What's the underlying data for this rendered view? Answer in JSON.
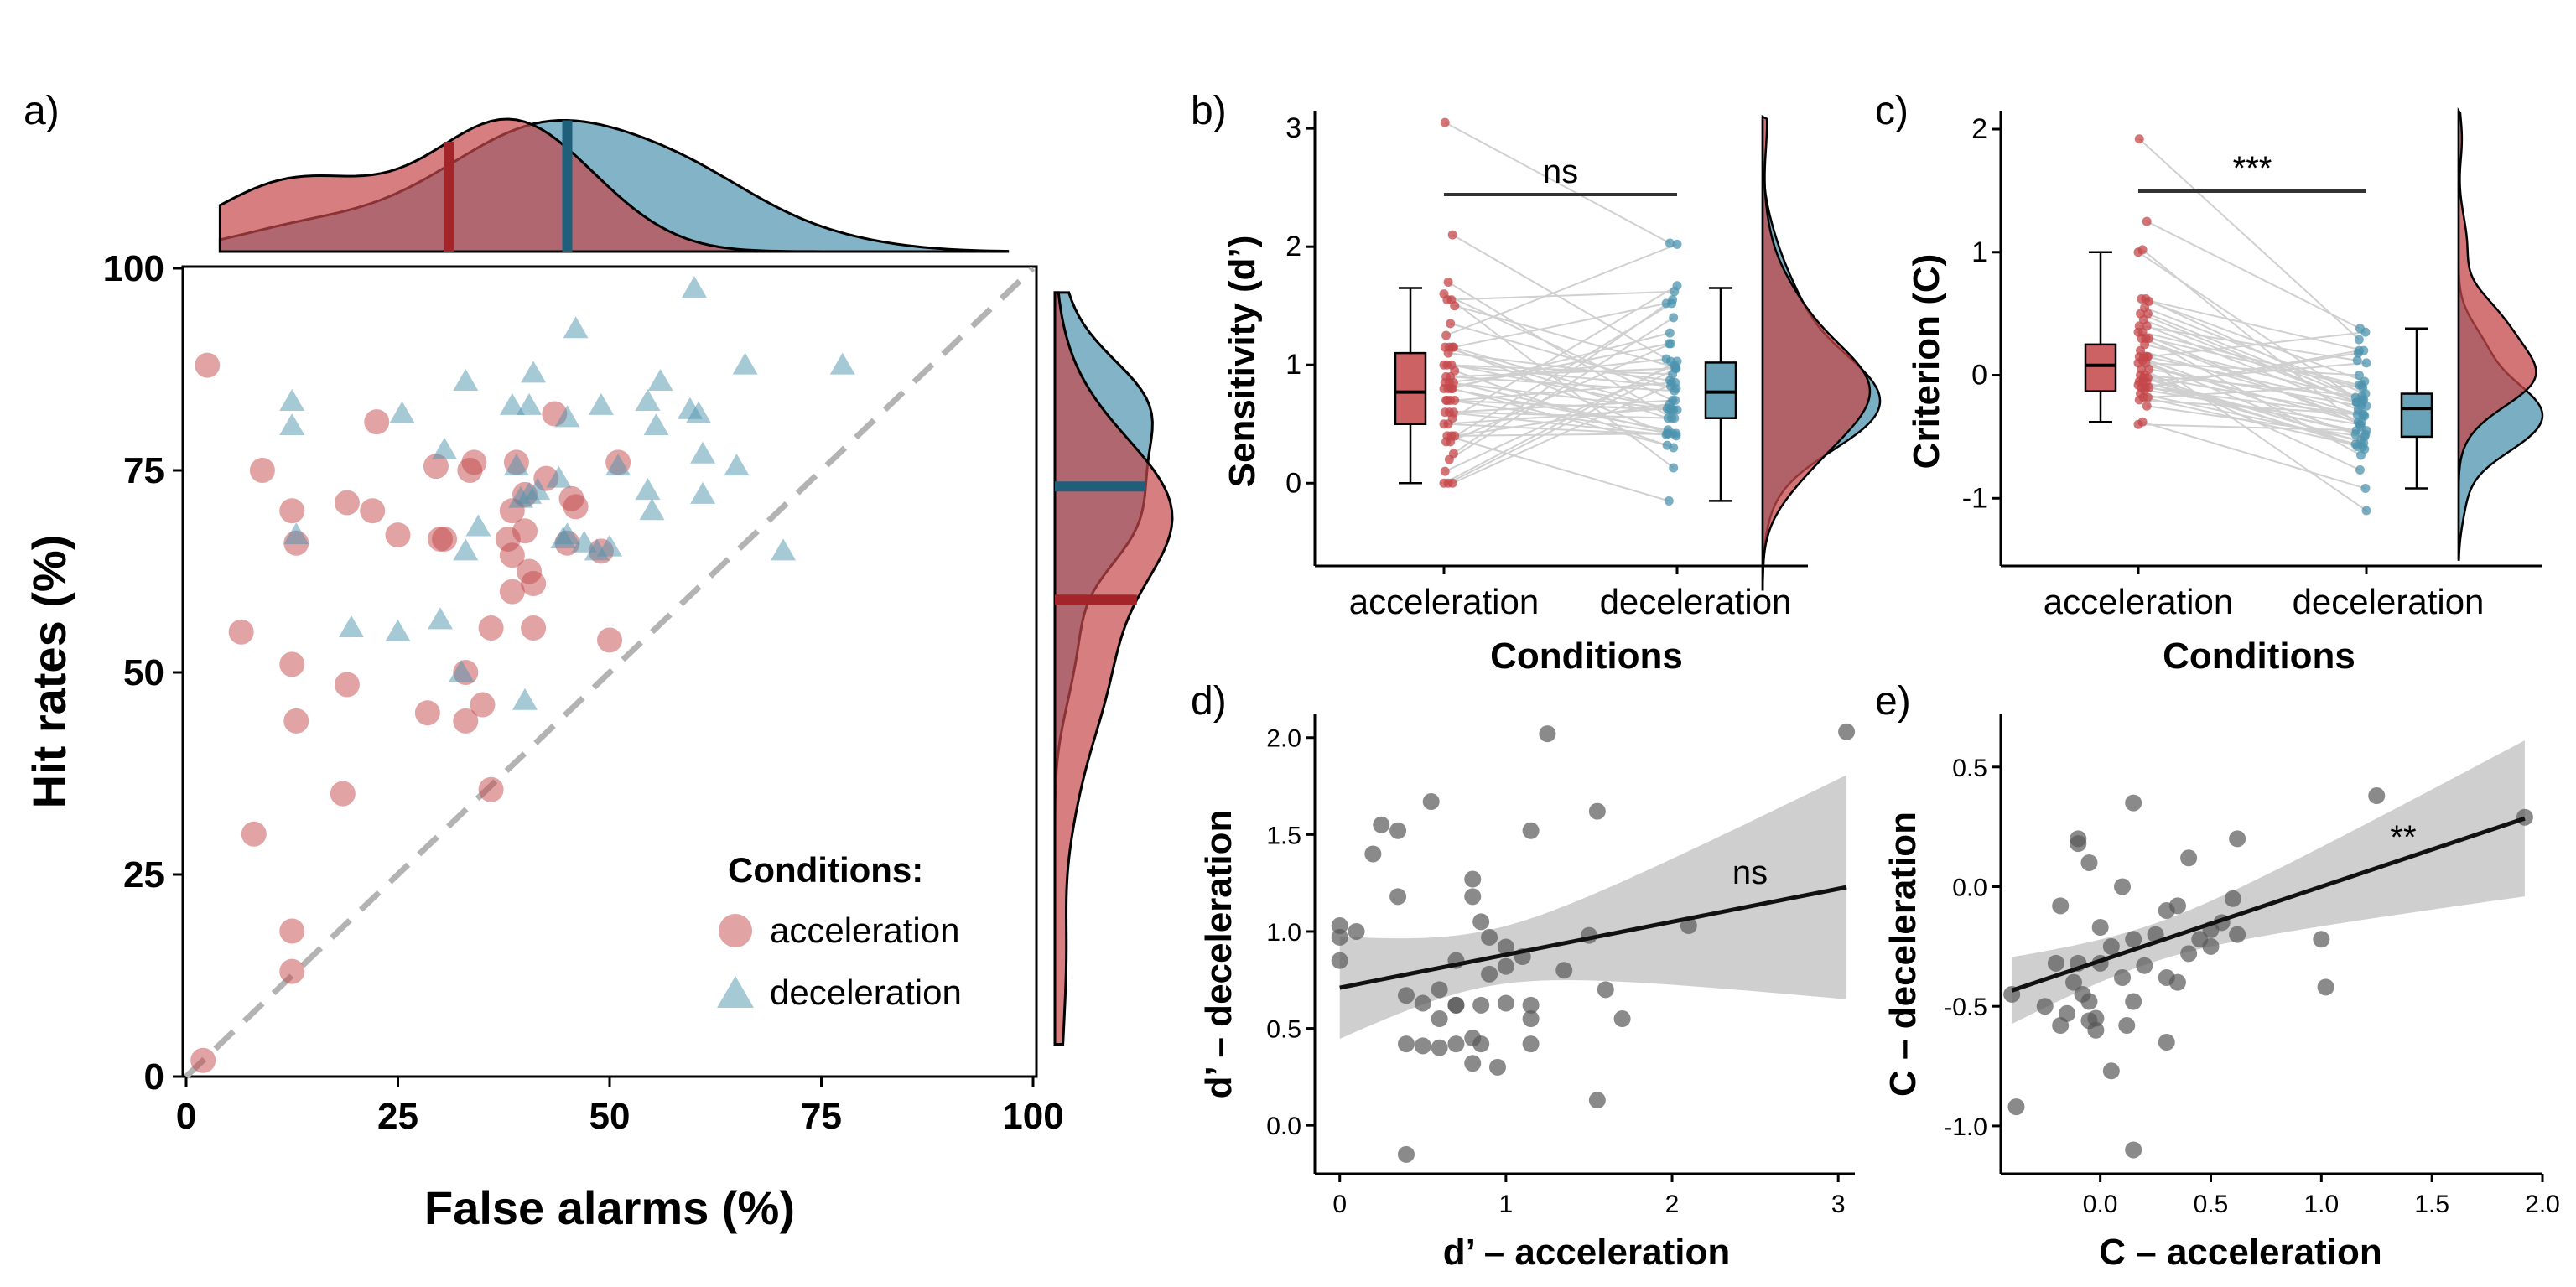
{
  "colors": {
    "acceleration": "#c4474a",
    "deceleration": "#4d93ae",
    "overlap": "#6e6e84",
    "grey": "#595959",
    "ci": "#cccccc"
  },
  "chart_data": [
    {
      "panel": "a)",
      "type": "scatter",
      "xlabel": "False alarms (%)",
      "ylabel": "Hit rates (%)",
      "xlim": [
        0,
        100
      ],
      "ylim": [
        0,
        100
      ],
      "xticks": [
        "0",
        "25",
        "50",
        "75",
        "100"
      ],
      "yticks": [
        "0",
        "25",
        "50",
        "75",
        "100"
      ],
      "legend_title": "Conditions:",
      "legend_position": "bottom-right",
      "diagonal": "dashed identity line",
      "acc_mean": {
        "x": 31,
        "y": 59
      },
      "dec_mean": {
        "x": 45,
        "y": 73
      },
      "series": [
        {
          "name": "acceleration",
          "marker": "circle",
          "points": [
            [
              2,
              2
            ],
            [
              2.5,
              88
            ],
            [
              6.5,
              55
            ],
            [
              8,
              30
            ],
            [
              9,
              75
            ],
            [
              12.5,
              70
            ],
            [
              12.5,
              51
            ],
            [
              13,
              66
            ],
            [
              13,
              44
            ],
            [
              12.5,
              18
            ],
            [
              12.5,
              13
            ],
            [
              18.5,
              35
            ],
            [
              19,
              71
            ],
            [
              19,
              48.5
            ],
            [
              22,
              70
            ],
            [
              22.5,
              81
            ],
            [
              25,
              67
            ],
            [
              28.5,
              45
            ],
            [
              29.5,
              75.5
            ],
            [
              30,
              66.5
            ],
            [
              30.5,
              66.5
            ],
            [
              33,
              50
            ],
            [
              33,
              44
            ],
            [
              33.5,
              75
            ],
            [
              34,
              76
            ],
            [
              35,
              46
            ],
            [
              36,
              55.5
            ],
            [
              36,
              35.5
            ],
            [
              38,
              66.5
            ],
            [
              38.5,
              64.5
            ],
            [
              38.5,
              70
            ],
            [
              38.5,
              60
            ],
            [
              39,
              76
            ],
            [
              40,
              72
            ],
            [
              40,
              67.5
            ],
            [
              40.5,
              62.5
            ],
            [
              41,
              55.5
            ],
            [
              41,
              61
            ],
            [
              42.5,
              74
            ],
            [
              43.5,
              82
            ],
            [
              45,
              66
            ],
            [
              45.5,
              71.5
            ],
            [
              46,
              70.5
            ],
            [
              49,
              65
            ],
            [
              50,
              54
            ],
            [
              51,
              76
            ]
          ]
        },
        {
          "name": "deceleration",
          "marker": "triangle",
          "points": [
            [
              12.5,
              83.5
            ],
            [
              12.5,
              80.5
            ],
            [
              13,
              67
            ],
            [
              19.5,
              55.5
            ],
            [
              25,
              55
            ],
            [
              25.5,
              82
            ],
            [
              30,
              56.5
            ],
            [
              30.5,
              77.5
            ],
            [
              32.5,
              50
            ],
            [
              33,
              65
            ],
            [
              33,
              86
            ],
            [
              34.5,
              68
            ],
            [
              38.5,
              83
            ],
            [
              39,
              75.5
            ],
            [
              39.5,
              71.5
            ],
            [
              40,
              46.5
            ],
            [
              40.5,
              72
            ],
            [
              40.5,
              83
            ],
            [
              41,
              87
            ],
            [
              41.5,
              72.5
            ],
            [
              44,
              74
            ],
            [
              44.5,
              66.5
            ],
            [
              45,
              67
            ],
            [
              45,
              81.5
            ],
            [
              46,
              92.5
            ],
            [
              47,
              66
            ],
            [
              48.5,
              65
            ],
            [
              49,
              83
            ],
            [
              50,
              65.5
            ],
            [
              51,
              75.5
            ],
            [
              54.5,
              83.5
            ],
            [
              54.5,
              72.5
            ],
            [
              55,
              70
            ],
            [
              55.5,
              80.5
            ],
            [
              56,
              86
            ],
            [
              59.5,
              82.5
            ],
            [
              60,
              97.5
            ],
            [
              60.5,
              82
            ],
            [
              61,
              77
            ],
            [
              61,
              72
            ],
            [
              65,
              75.5
            ],
            [
              66,
              88
            ],
            [
              70.5,
              65
            ],
            [
              77.5,
              88
            ]
          ]
        }
      ]
    },
    {
      "panel": "b)",
      "type": "raincloud",
      "xlabel": "Conditions",
      "ylabel": "Sensitivity (d’)",
      "categories": [
        "acceleration",
        "deceleration"
      ],
      "ylim": [
        -0.7,
        3.15
      ],
      "yticks": [
        "0",
        "1",
        "2",
        "3"
      ],
      "significance": "ns",
      "box": {
        "acceleration": {
          "min": 0.0,
          "q1": 0.5,
          "median": 0.77,
          "q3": 1.1,
          "max": 1.65
        },
        "deceleration": {
          "min": -0.15,
          "q1": 0.55,
          "median": 0.77,
          "q3": 1.02,
          "max": 1.65
        }
      }
    },
    {
      "panel": "c)",
      "type": "raincloud",
      "xlabel": "Conditions",
      "ylabel": "Criterion (C)",
      "categories": [
        "acceleration",
        "deceleration"
      ],
      "ylim": [
        -1.55,
        2.15
      ],
      "yticks": [
        "-1",
        "0",
        "1",
        "2"
      ],
      "significance": "***",
      "box": {
        "acceleration": {
          "min": -0.38,
          "q1": -0.13,
          "median": 0.08,
          "q3": 0.25,
          "max": 1.0
        },
        "deceleration": {
          "min": -0.92,
          "q1": -0.5,
          "median": -0.27,
          "q3": -0.15,
          "max": 0.38
        }
      }
    },
    {
      "panel": "d)",
      "type": "scatter",
      "xlabel": "d’ –  acceleration",
      "ylabel": "d’ – deceleration",
      "xlim": [
        -0.15,
        3.1
      ],
      "ylim": [
        -0.25,
        2.12
      ],
      "xticks": [
        "0",
        "1",
        "2",
        "3"
      ],
      "yticks": [
        "0.0",
        "0.5",
        "1.0",
        "1.5",
        "2.0"
      ],
      "significance": "ns",
      "regression": {
        "intercept": 0.71,
        "slope": 0.17
      },
      "points": [
        [
          0,
          1.03
        ],
        [
          0,
          0.97
        ],
        [
          0,
          0.85
        ],
        [
          0.1,
          1.0
        ],
        [
          0.2,
          1.4
        ],
        [
          0.25,
          1.55
        ],
        [
          0.35,
          1.52
        ],
        [
          0.35,
          1.18
        ],
        [
          0.4,
          0.67
        ],
        [
          0.4,
          -0.15
        ],
        [
          0.4,
          0.42
        ],
        [
          0.5,
          0.63
        ],
        [
          0.5,
          0.41
        ],
        [
          0.55,
          1.67
        ],
        [
          0.6,
          0.4
        ],
        [
          0.6,
          0.7
        ],
        [
          0.6,
          0.55
        ],
        [
          0.7,
          0.62
        ],
        [
          0.7,
          0.42
        ],
        [
          0.7,
          0.85
        ],
        [
          0.7,
          0.62
        ],
        [
          0.8,
          1.27
        ],
        [
          0.8,
          1.18
        ],
        [
          0.8,
          0.45
        ],
        [
          0.8,
          0.32
        ],
        [
          0.85,
          1.05
        ],
        [
          0.85,
          0.62
        ],
        [
          0.85,
          0.42
        ],
        [
          0.9,
          0.97
        ],
        [
          0.9,
          0.78
        ],
        [
          0.95,
          0.3
        ],
        [
          1.0,
          0.92
        ],
        [
          1.0,
          0.63
        ],
        [
          1.0,
          0.82
        ],
        [
          1.1,
          0.87
        ],
        [
          1.15,
          0.62
        ],
        [
          1.15,
          0.55
        ],
        [
          1.15,
          0.42
        ],
        [
          1.15,
          1.52
        ],
        [
          1.25,
          2.02
        ],
        [
          1.35,
          0.8
        ],
        [
          1.5,
          0.98
        ],
        [
          1.55,
          1.62
        ],
        [
          1.55,
          0.13
        ],
        [
          1.6,
          0.7
        ],
        [
          1.7,
          0.55
        ],
        [
          2.1,
          1.03
        ],
        [
          3.05,
          2.03
        ]
      ]
    },
    {
      "panel": "e)",
      "type": "scatter",
      "xlabel": "C –  acceleration",
      "ylabel": "C – deceleration",
      "xlim": [
        -0.45,
        2.0
      ],
      "ylim": [
        -1.2,
        0.72
      ],
      "xticks": [
        "0.0",
        "0.5",
        "1.0",
        "1.5",
        "2.0"
      ],
      "yticks": [
        "-1.0",
        "-0.5",
        "0.0",
        "0.5"
      ],
      "significance": "**",
      "regression": {
        "intercept": -0.31,
        "slope": 0.31
      },
      "points": [
        [
          -0.4,
          -0.45
        ],
        [
          -0.38,
          -0.92
        ],
        [
          -0.25,
          -0.5
        ],
        [
          -0.2,
          -0.32
        ],
        [
          -0.18,
          -0.58
        ],
        [
          -0.18,
          -0.08
        ],
        [
          -0.15,
          -0.53
        ],
        [
          -0.12,
          -0.4
        ],
        [
          -0.1,
          0.2
        ],
        [
          -0.1,
          0.18
        ],
        [
          -0.1,
          -0.32
        ],
        [
          -0.08,
          -0.45
        ],
        [
          -0.05,
          -0.56
        ],
        [
          -0.05,
          0.1
        ],
        [
          -0.05,
          -0.48
        ],
        [
          -0.02,
          -0.6
        ],
        [
          -0.02,
          -0.55
        ],
        [
          0.0,
          -0.32
        ],
        [
          0.0,
          -0.17
        ],
        [
          0.05,
          -0.25
        ],
        [
          0.05,
          -0.77
        ],
        [
          0.1,
          0.0
        ],
        [
          0.1,
          -0.38
        ],
        [
          0.12,
          -0.58
        ],
        [
          0.15,
          -0.22
        ],
        [
          0.15,
          -0.48
        ],
        [
          0.15,
          -1.1
        ],
        [
          0.15,
          0.35
        ],
        [
          0.2,
          -0.33
        ],
        [
          0.25,
          -0.2
        ],
        [
          0.3,
          -0.1
        ],
        [
          0.3,
          -0.38
        ],
        [
          0.3,
          -0.65
        ],
        [
          0.35,
          -0.4
        ],
        [
          0.35,
          -0.08
        ],
        [
          0.4,
          -0.28
        ],
        [
          0.4,
          0.12
        ],
        [
          0.45,
          -0.22
        ],
        [
          0.5,
          -0.18
        ],
        [
          0.5,
          -0.25
        ],
        [
          0.55,
          -0.15
        ],
        [
          0.6,
          -0.05
        ],
        [
          0.62,
          0.2
        ],
        [
          0.62,
          -0.2
        ],
        [
          1.0,
          -0.22
        ],
        [
          1.02,
          -0.42
        ],
        [
          1.25,
          0.38
        ],
        [
          1.92,
          0.29
        ]
      ]
    }
  ]
}
